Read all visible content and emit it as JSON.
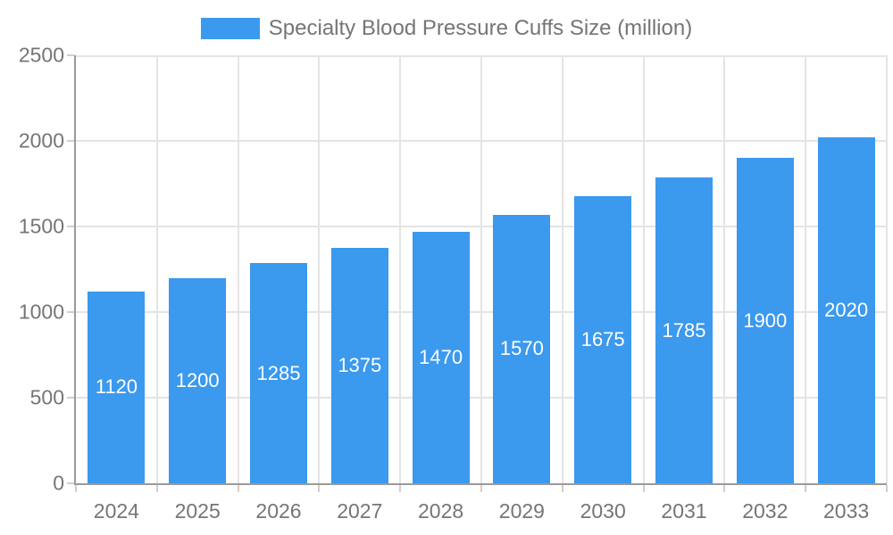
{
  "legend": {
    "label": "Specialty Blood Pressure Cuffs Size (million)"
  },
  "chart_data": {
    "type": "bar",
    "title": "Specialty Blood Pressure Cuffs Size (million)",
    "categories": [
      "2024",
      "2025",
      "2026",
      "2027",
      "2028",
      "2029",
      "2030",
      "2031",
      "2032",
      "2033"
    ],
    "values": [
      1120,
      1200,
      1285,
      1375,
      1470,
      1570,
      1675,
      1785,
      1900,
      2020
    ],
    "series": [
      {
        "name": "Specialty Blood Pressure Cuffs Size (million)",
        "values": [
          1120,
          1200,
          1285,
          1375,
          1470,
          1570,
          1675,
          1785,
          1900,
          2020
        ]
      }
    ],
    "xlabel": "",
    "ylabel": "",
    "ylim": [
      0,
      2500
    ],
    "y_ticks": [
      0,
      500,
      1000,
      1500,
      2000,
      2500
    ],
    "grid": true,
    "legend_position": "top-center",
    "data_labels": "inside-center-white",
    "colors": {
      "bar": "#3b99ee",
      "bar_label_text": "#ffffff",
      "axis_text": "#757575",
      "grid_line": "#e4e4e4",
      "axis_line": "#9a9a9a"
    }
  }
}
